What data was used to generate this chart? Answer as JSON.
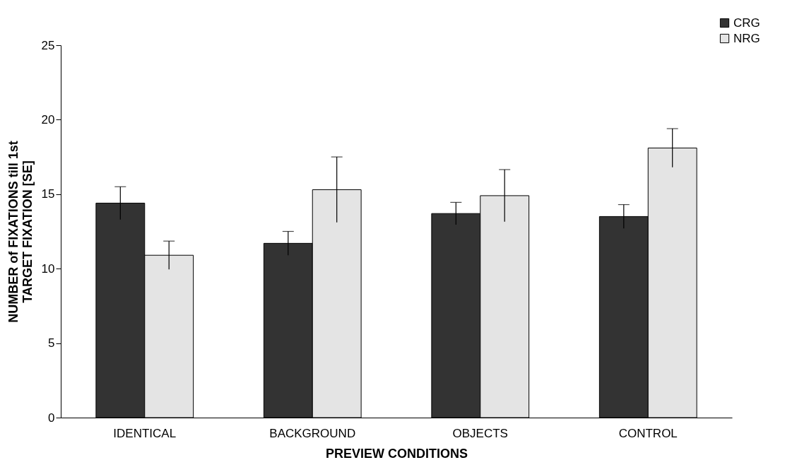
{
  "chart_data": {
    "type": "bar",
    "xlabel": "PREVIEW CONDITIONS",
    "ylabel": "NUMBER of FIXATIONS till 1st TARGET FIXATION [SE]",
    "categories": [
      "IDENTICAL",
      "BACKGROUND",
      "OBJECTS",
      "CONTROL"
    ],
    "series": [
      {
        "name": "CRG",
        "color": "#333333",
        "values": [
          14.4,
          11.7,
          13.7,
          13.5
        ],
        "errors": [
          1.1,
          0.8,
          0.75,
          0.8
        ]
      },
      {
        "name": "NRG",
        "color": "#e4e4e4",
        "values": [
          10.9,
          15.3,
          14.9,
          18.1
        ],
        "errors": [
          0.95,
          2.2,
          1.75,
          1.3
        ]
      }
    ],
    "ylim": [
      0,
      25
    ],
    "yticks": [
      0,
      5,
      10,
      15,
      20,
      25
    ],
    "grid": false,
    "legend": "top right"
  }
}
